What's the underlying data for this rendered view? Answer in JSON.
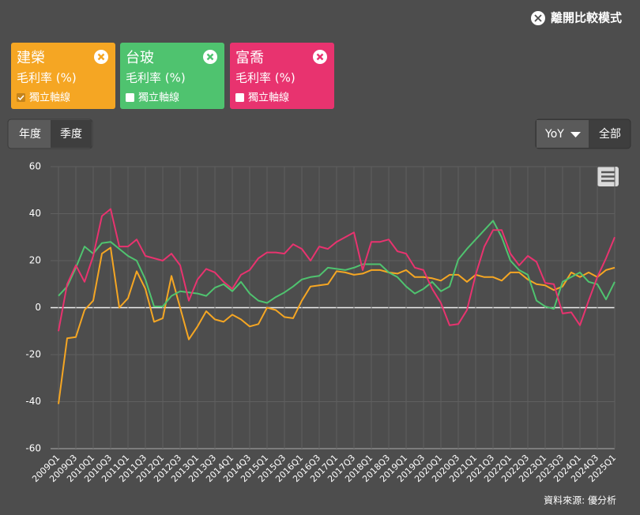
{
  "ui": {
    "exit": "離開比較模式",
    "period_buttons": [
      "年度",
      "季度"
    ],
    "active_period": 1,
    "yoy": "YoY",
    "range": "全部",
    "source": "資料來源: 優分析"
  },
  "chart_data": {
    "type": "line",
    "categories": [
      "2009Q1",
      null,
      "2009Q3",
      null,
      "2010Q1",
      null,
      "2010Q3",
      null,
      "2011Q1",
      null,
      "2011Q3",
      null,
      "2012Q1",
      null,
      "2012Q3",
      null,
      "2013Q1",
      null,
      "2013Q3",
      null,
      "2014Q1",
      null,
      "2014Q3",
      null,
      "2015Q1",
      null,
      "2015Q3",
      null,
      "2016Q1",
      null,
      "2016Q3",
      null,
      "2017Q1",
      null,
      "2017Q3",
      null,
      "2018Q1",
      null,
      "2018Q3",
      null,
      "2019Q1",
      null,
      "2019Q3",
      null,
      "2020Q1",
      null,
      "2020Q3",
      null,
      "2021Q1",
      null,
      "2021Q3",
      null,
      "2022Q1",
      null,
      "2022Q3",
      null,
      "2023Q1",
      null,
      "2023Q3",
      null,
      "2024Q1",
      null,
      "2024Q3",
      null,
      "2025Q1"
    ],
    "series": [
      {
        "name": "建榮",
        "unit": "毛利率 (%)",
        "independent_axis": {
          "label": "獨立軸線",
          "checked": true
        },
        "color": "#f5a623",
        "values": [
          -41,
          -13,
          -12.5,
          -1,
          3,
          23,
          25.5,
          0,
          4,
          15.5,
          8,
          -6,
          -4.5,
          13.5,
          0,
          -13.5,
          -8,
          -1.5,
          -5,
          -6,
          -3,
          -5,
          -8,
          -7,
          0,
          -1,
          -4,
          -4.5,
          3,
          9,
          9.5,
          10,
          15.5,
          15,
          14,
          14.5,
          16,
          16,
          15,
          14.5,
          16,
          13,
          13,
          12.5,
          11.5,
          14,
          14,
          11,
          14,
          13,
          13,
          11.5,
          15,
          15,
          12,
          10,
          9.5,
          7.5,
          9,
          15,
          13,
          15,
          13,
          16,
          17
        ]
      },
      {
        "name": "台玻",
        "unit": "毛利率 (%)",
        "independent_axis": {
          "label": "獨立軸線",
          "checked": false
        },
        "color": "#4fc36f",
        "values": [
          5,
          9,
          17,
          26,
          23,
          27.5,
          28,
          25,
          22,
          20,
          12,
          0.5,
          0.5,
          5,
          7,
          6.5,
          6,
          5,
          8.5,
          10,
          7,
          11,
          6,
          3,
          2,
          4.5,
          6.5,
          9,
          12,
          13,
          13.5,
          17,
          16.5,
          16,
          17,
          18.5,
          18.5,
          18.5,
          15,
          13,
          9,
          6,
          8,
          11,
          7,
          9,
          20.5,
          25,
          29,
          33,
          37,
          30,
          20,
          16,
          14,
          3,
          0.5,
          -0.5,
          11,
          13,
          15,
          11,
          10,
          3.5,
          11
        ]
      },
      {
        "name": "富喬",
        "unit": "毛利率 (%)",
        "independent_axis": {
          "label": "獨立軸線",
          "checked": false
        },
        "color": "#e8336f",
        "values": [
          -10,
          10,
          18,
          11,
          22,
          39,
          42,
          26,
          26,
          29,
          22,
          21,
          20,
          23,
          18,
          3,
          12,
          16.5,
          15,
          11,
          8,
          14,
          16,
          21,
          23.5,
          23.5,
          23,
          27,
          25,
          20,
          26,
          25,
          28,
          30,
          32,
          16,
          28,
          28,
          29,
          24,
          23,
          17,
          16,
          8,
          2,
          -7.5,
          -7,
          -1,
          14,
          26,
          33,
          33,
          23,
          18,
          22,
          19.5,
          10.5,
          10,
          -2.5,
          -2,
          -7.5,
          3,
          13,
          21,
          30
        ]
      }
    ],
    "ylim": [
      -60,
      60
    ],
    "yticks": [
      -60,
      -40,
      -20,
      0,
      20,
      40,
      60
    ],
    "grid": true
  }
}
